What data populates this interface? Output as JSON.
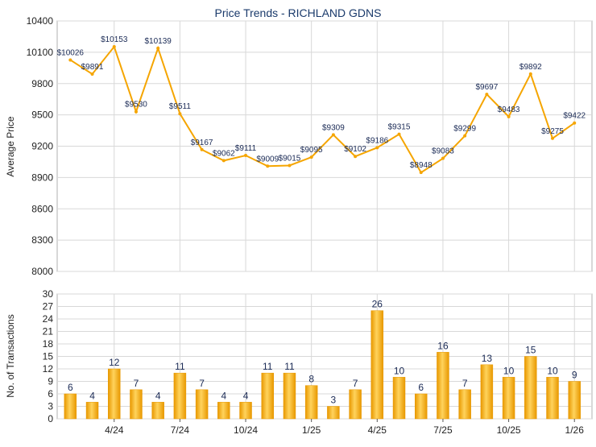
{
  "colors": {
    "title": "#1a3a6b",
    "line": "#f5a500",
    "bar_light": "#ffd35c",
    "bar_dark": "#e89800",
    "grid": "#d8d8d8",
    "axis": "#555555",
    "text": "#222222",
    "label": "#1a2a55"
  },
  "chart_data": [
    {
      "type": "line",
      "title": "Price Trends - RICHLAND GDNS",
      "ylabel": "Average Price",
      "ylim": [
        8000,
        10400
      ],
      "yticks": [
        8000,
        8300,
        8600,
        8900,
        9200,
        9500,
        9800,
        10100,
        10400
      ],
      "grid": true,
      "series": [
        {
          "values": [
            10026,
            9891,
            10153,
            9530,
            10139,
            9511,
            9167,
            9062,
            9111,
            9009,
            9015,
            9095,
            9309,
            9102,
            9186,
            9315,
            8948,
            9083,
            9299,
            9697,
            9483,
            9892,
            9275,
            9422
          ],
          "labels": [
            "$10026",
            "$9891",
            "$10153",
            "$9530",
            "$10139",
            "$9511",
            "$9167",
            "$9062",
            "$9111",
            "$9009",
            "$9015",
            "$9095",
            "$9309",
            "$9102",
            "$9186",
            "$9315",
            "$8948",
            "$9083",
            "$9299",
            "$9697",
            "$9483",
            "$9892",
            "$9275",
            "$9422"
          ]
        }
      ]
    },
    {
      "type": "bar",
      "ylabel": "No. of Transactions",
      "ylim": [
        0,
        30
      ],
      "yticks": [
        0,
        3,
        6,
        9,
        12,
        15,
        18,
        21,
        24,
        27,
        30
      ],
      "grid": true,
      "values": [
        6,
        4,
        12,
        7,
        4,
        11,
        7,
        4,
        4,
        11,
        11,
        8,
        3,
        7,
        26,
        10,
        6,
        16,
        7,
        13,
        10,
        15,
        10,
        9
      ],
      "xticks": [
        {
          "index": 2,
          "label": "4/24"
        },
        {
          "index": 5,
          "label": "7/24"
        },
        {
          "index": 8,
          "label": "10/24"
        },
        {
          "index": 11,
          "label": "1/25"
        },
        {
          "index": 14,
          "label": "4/25"
        },
        {
          "index": 17,
          "label": "7/25"
        },
        {
          "index": 20,
          "label": "10/25"
        },
        {
          "index": 23,
          "label": "1/26"
        }
      ]
    }
  ]
}
